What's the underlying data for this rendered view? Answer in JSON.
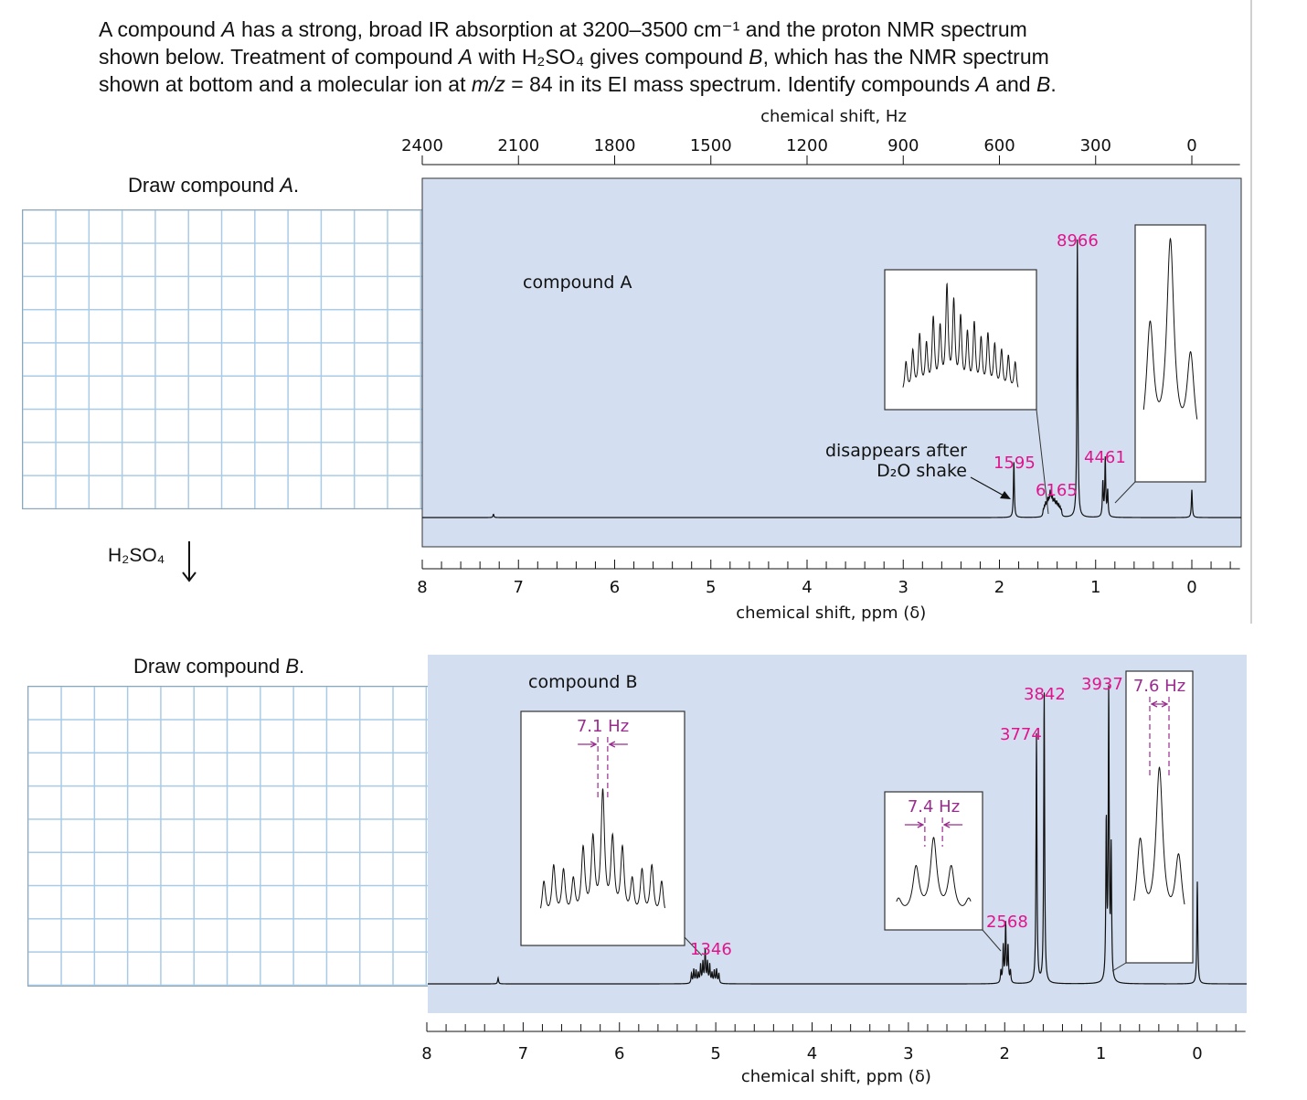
{
  "problem": {
    "lines": [
      [
        {
          "t": "A compound "
        },
        {
          "t": "A",
          "i": true
        },
        {
          "t": " has a strong, broad IR absorption at 3200–3500 cm⁻¹ and the proton NMR spectrum"
        }
      ],
      [
        {
          "t": "shown below. Treatment of compound "
        },
        {
          "t": "A",
          "i": true
        },
        {
          "t": " with H₂SO₄ gives compound "
        },
        {
          "t": "B",
          "i": true
        },
        {
          "t": ", which has the NMR spectrum"
        }
      ],
      [
        {
          "t": "shown at bottom and a molecular ion at "
        },
        {
          "t": "m/z",
          "i": true
        },
        {
          "t": " = 84 in its EI mass spectrum. Identify compounds "
        },
        {
          "t": "A",
          "i": true
        },
        {
          "t": " and "
        },
        {
          "t": "B",
          "i": true
        },
        {
          "t": "."
        }
      ]
    ]
  },
  "draw_a": {
    "label_prefix": "Draw compound ",
    "label_var": "A",
    "label_suffix": "."
  },
  "draw_b": {
    "label_prefix": "Draw compound ",
    "label_var": "B",
    "label_suffix": "."
  },
  "reagent": "H₂SO₄",
  "colors": {
    "panel": "#d3dff0",
    "annotation": "#e0148c",
    "coupling": "#9b2c8f",
    "grid": "#a9cbe6"
  },
  "chart_data": [
    {
      "type": "line",
      "title": "compound A",
      "xlabel": "chemical shift, ppm (δ)",
      "x2label": "chemical shift, Hz",
      "xlim": [
        8,
        -0.5
      ],
      "x_ticks": [
        8,
        7,
        6,
        5,
        4,
        3,
        2,
        1,
        0
      ],
      "x2_ticks": [
        2400,
        2100,
        1800,
        1500,
        1200,
        900,
        600,
        300,
        0
      ],
      "grid": false,
      "peaks": [
        {
          "ppm": 7.26,
          "rel_height": 0.012,
          "lines": [
            1
          ]
        },
        {
          "ppm": 1.85,
          "rel_height": 0.2,
          "lines": [
            1
          ],
          "integration": "1595",
          "note": "disappears after D₂O shake"
        },
        {
          "ppm": 1.45,
          "rel_height": 0.1,
          "J_Hz": 3.5,
          "lines": [
            0.3,
            0.4,
            0.55,
            0.45,
            0.7,
            0.6,
            1,
            0.85,
            0.7,
            0.55,
            0.65,
            0.5,
            0.55,
            0.45,
            0.4,
            0.35,
            0.3
          ],
          "integration": "6165",
          "inset": true
        },
        {
          "ppm": 1.19,
          "rel_height": 1,
          "lines": [
            1
          ],
          "integration": "8966"
        },
        {
          "ppm": 0.9,
          "rel_height": 0.22,
          "J_Hz": 7.5,
          "lines": [
            0.6,
            1,
            0.45
          ],
          "integration": "4461",
          "inset": true
        },
        {
          "ppm": 0,
          "rel_height": 0.1,
          "lines": [
            1
          ]
        }
      ]
    },
    {
      "type": "line",
      "title": "compound B",
      "xlabel": "chemical shift, ppm (δ)",
      "xlim": [
        8,
        -0.5
      ],
      "x_ticks": [
        8,
        7,
        6,
        5,
        4,
        3,
        2,
        1,
        0
      ],
      "grid": false,
      "peaks": [
        {
          "ppm": 7.26,
          "rel_height": 0.02,
          "lines": [
            1
          ]
        },
        {
          "ppm": 5.11,
          "rel_height": 0.12,
          "J_Hz": 7.1,
          "lines": [
            0.3,
            0.42,
            0.38,
            0.3,
            0.55,
            0.62,
            1,
            0.62,
            0.55,
            0.3,
            0.38,
            0.42,
            0.3
          ],
          "integration": "1346",
          "inset": true,
          "coupling_label": "7.1 Hz"
        },
        {
          "ppm": 1.99,
          "rel_height": 0.21,
          "J_Hz": 7.4,
          "lines": [
            0.2,
            0.62,
            1,
            0.62,
            0.2
          ],
          "integration": "2568",
          "inset": true,
          "coupling_label": "7.4 Hz"
        },
        {
          "ppm": 1.67,
          "rel_height": 0.83,
          "lines": [
            1
          ],
          "integration": "3774"
        },
        {
          "ppm": 1.59,
          "rel_height": 0.97,
          "lines": [
            1
          ],
          "integration": "3842"
        },
        {
          "ppm": 0.92,
          "rel_height": 1,
          "J_Hz": 7.6,
          "lines": [
            0.55,
            1,
            0.45
          ],
          "integration": "3937",
          "inset": true,
          "coupling_label": "7.6 Hz"
        },
        {
          "ppm": 0,
          "rel_height": 0.34,
          "lines": [
            1
          ]
        }
      ]
    }
  ]
}
